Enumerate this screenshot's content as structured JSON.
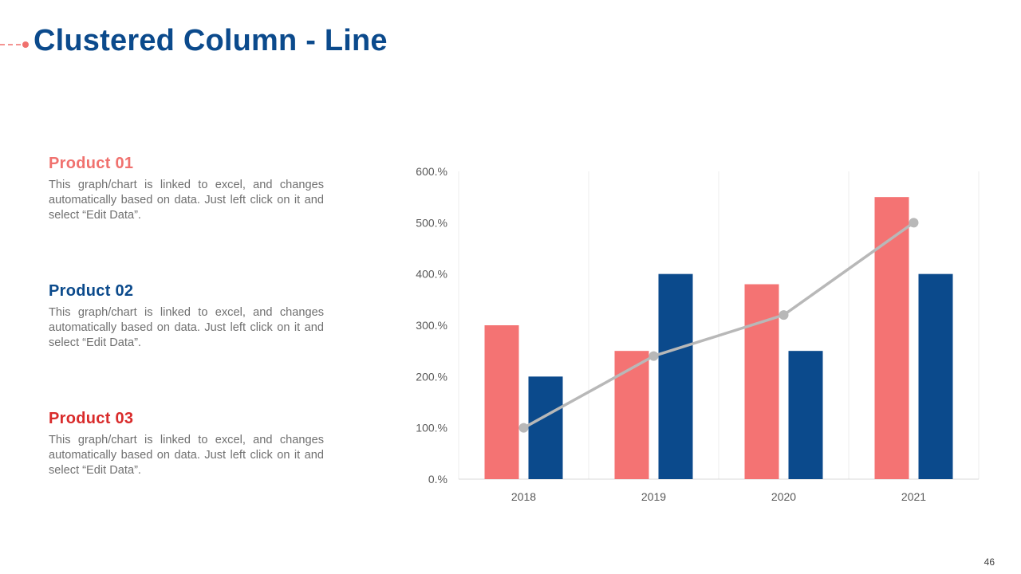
{
  "slide": {
    "title": "Clustered Column - Line",
    "page_number": "46"
  },
  "products": [
    {
      "name": "Product 01",
      "color": "#f0716e",
      "description": "This graph/chart is linked to excel, and changes automatically based on data. Just left click on it and select “Edit Data”."
    },
    {
      "name": "Product 02",
      "color": "#0b4a8c",
      "description": "This graph/chart is linked to excel, and changes automatically based on data. Just left click on it and select “Edit Data”."
    },
    {
      "name": "Product 03",
      "color": "#d92b2b",
      "description": "This graph/chart is linked to excel, and changes automatically based on data. Just left click on it and select “Edit Data”."
    }
  ],
  "chart_data": {
    "type": "bar",
    "combo": "clustered column + line",
    "categories": [
      "2018",
      "2019",
      "2020",
      "2021"
    ],
    "series": [
      {
        "name": "Product 01",
        "kind": "column",
        "color": "#f47373",
        "values": [
          300,
          250,
          380,
          550
        ]
      },
      {
        "name": "Product 02",
        "kind": "column",
        "color": "#0b4a8c",
        "values": [
          200,
          400,
          250,
          400
        ]
      },
      {
        "name": "Product 03",
        "kind": "line",
        "color": "#b8b8b8",
        "values": [
          100,
          240,
          320,
          500
        ]
      }
    ],
    "y_ticks": [
      "0.%",
      "100.%",
      "200.%",
      "300.%",
      "400.%",
      "500.%",
      "600.%"
    ],
    "ylim": [
      0,
      600
    ],
    "title": "",
    "xlabel": "",
    "ylabel": "",
    "grid": "vertical category separators"
  }
}
